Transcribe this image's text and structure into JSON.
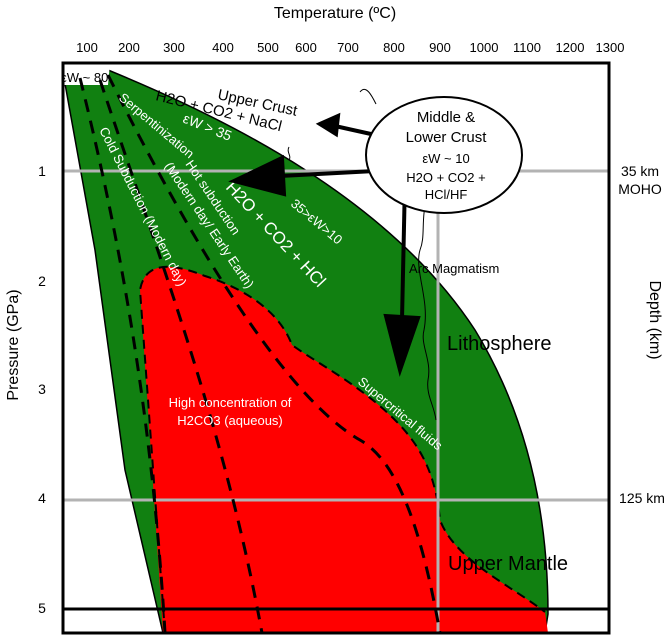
{
  "figure": {
    "x_axis_title": "Temperature (ºC)",
    "x_ticks": [
      "100",
      "200",
      "300",
      "400",
      "500",
      "600",
      "700",
      "800",
      "900",
      "1000",
      "1100",
      "1200",
      "1300"
    ],
    "y_axis_title": "Pressure (GPa)",
    "y_ticks": [
      "1",
      "2",
      "3",
      "4",
      "5"
    ],
    "right_axis_title": "Depth (km)",
    "right_labels": {
      "moho_depth": "35 km",
      "moho": "MOHO",
      "depth_125": "125 km"
    }
  },
  "regions": {
    "upper_crust": "Upper Crust",
    "upper_crust_fluid": "H2O + CO2 + NaCl",
    "eps_80": "εW ~ 80",
    "eps_35": "εW > 35",
    "eps_35_10": "35>εW>10",
    "lithosphere": "Lithosphere",
    "upper_mantle": "Upper Mantle",
    "h2co3_line1": "High concentration of",
    "h2co3_line2": "H2CO3 (aqueous)"
  },
  "middle_crust": {
    "line1": "Middle &",
    "line2": "Lower Crust",
    "line3": "εW ~ 10",
    "line4": "H2O + CO2 +",
    "line5": "HCl/HF"
  },
  "path_labels": {
    "serpentinization": "Serpentinization",
    "hot_subduction_1": "Hot subduction",
    "hot_subduction_2": "(Modern day/ Early Earth)",
    "cold_subduction": "Cold Subduction (Modern day)",
    "main_fluid": "H2O + CO2 + HCl",
    "supercritical": "Supercritical fluids",
    "arc_magmatism": "Arc Magmatism"
  },
  "colors": {
    "lithosphere": "#118011",
    "mantle_fluid": "#ff0000",
    "lines": "#000000",
    "grid": "#b3b3b3"
  }
}
